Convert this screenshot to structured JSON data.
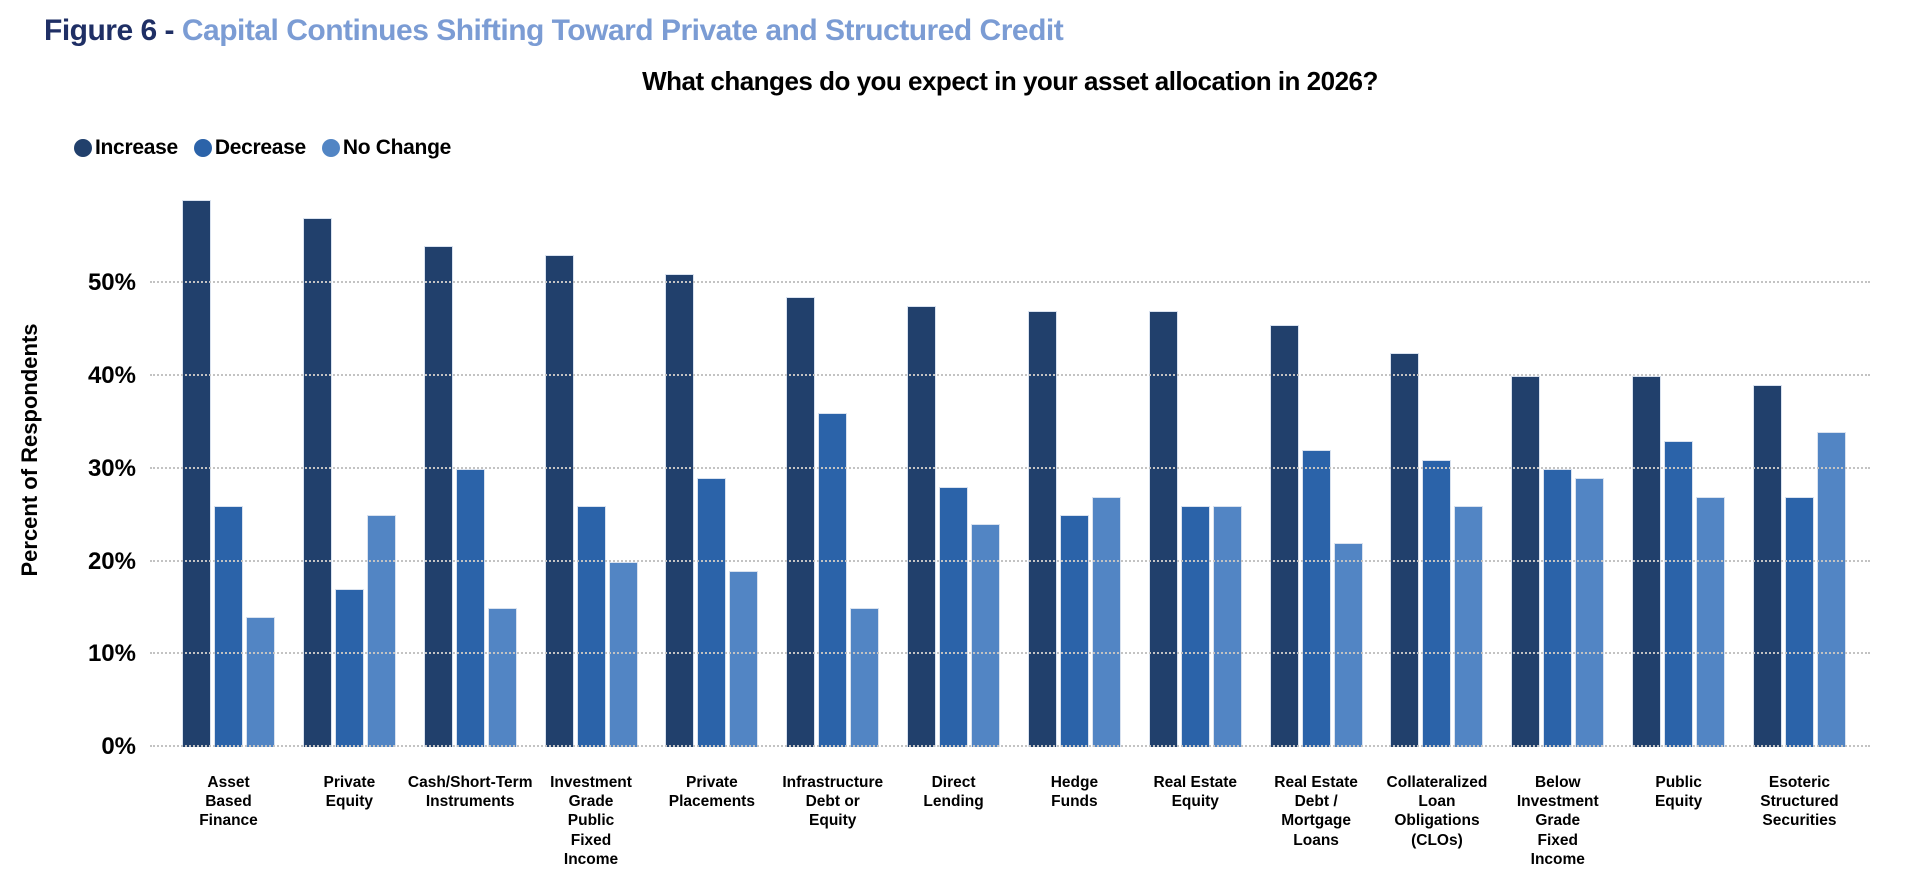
{
  "figure": {
    "label": "Figure 6 - ",
    "title": "Capital Continues Shifting Toward Private and Structured Credit"
  },
  "chart_data": {
    "type": "bar",
    "title": "What changes do you expect in your asset allocation in 2026?",
    "ylabel": "Percent of Respondents",
    "xlabel": "",
    "ylim": [
      0,
      62
    ],
    "yticks": [
      0,
      10,
      20,
      30,
      40,
      50
    ],
    "ytick_suffix": "%",
    "grid": "dotted horizontal",
    "legend_position": "top-left",
    "categories": [
      "Asset Based Finance",
      "Private Equity",
      "Cash/Short-Term Instruments",
      "Investment Grade Public Fixed Income",
      "Private Placements",
      "Infrastructure Debt or Equity",
      "Direct Lending",
      "Hedge Funds",
      "Real Estate Equity",
      "Real Estate Debt / Mortgage Loans",
      "Collateralized Loan Obligations (CLOs)",
      "Below Investment Grade Fixed Income",
      "Public Equity",
      "Esoteric Structured Securities"
    ],
    "category_label_lines": [
      [
        "Asset",
        "Based",
        "Finance"
      ],
      [
        "Private",
        "Equity"
      ],
      [
        "Cash/Short-Term",
        "Instruments"
      ],
      [
        "Investment",
        "Grade",
        "Public",
        "Fixed",
        "Income"
      ],
      [
        "Private",
        "Placements"
      ],
      [
        "Infrastructure",
        "Debt or",
        "Equity"
      ],
      [
        "Direct",
        "Lending"
      ],
      [
        "Hedge",
        "Funds"
      ],
      [
        "Real Estate",
        "Equity"
      ],
      [
        "Real Estate",
        "Debt /",
        "Mortgage",
        "Loans"
      ],
      [
        "Collateralized",
        "Loan",
        "Obligations",
        "(CLOs)"
      ],
      [
        "Below",
        "Investment",
        "Grade",
        "Fixed",
        "Income"
      ],
      [
        "Public",
        "Equity"
      ],
      [
        "Esoteric",
        "Structured",
        "Securities"
      ]
    ],
    "series": [
      {
        "name": "Increase",
        "color": "#21406C",
        "values": [
          59,
          57,
          54,
          53,
          51,
          48.5,
          47.5,
          47,
          47,
          45.5,
          42.5,
          40,
          40,
          39
        ]
      },
      {
        "name": "Decrease",
        "color": "#2B63A9",
        "values": [
          26,
          17,
          30,
          26,
          29,
          36,
          28,
          25,
          26,
          32,
          31,
          30,
          33,
          27
        ]
      },
      {
        "name": "No Change",
        "color": "#5285C4",
        "values": [
          14,
          25,
          15,
          20,
          19,
          15,
          24,
          27,
          26,
          22,
          26,
          29,
          27,
          34
        ]
      }
    ]
  },
  "colors": {
    "figure_label": "#1F2F65",
    "figure_title": "#7B9CD4",
    "gridline": "#c3c3c3",
    "background": "#ffffff"
  }
}
